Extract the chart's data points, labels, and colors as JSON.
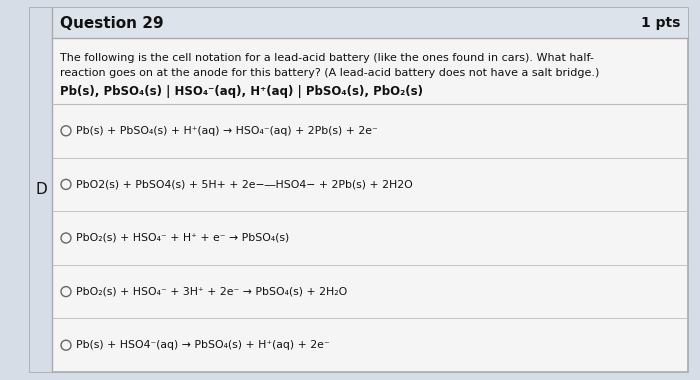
{
  "title": "Question 29",
  "pts": "1 pts",
  "question_label": "D",
  "body_line1": "The following is the cell notation for a lead-acid battery (like the ones found in cars). What half-",
  "body_line2": "reaction goes on at the anode for this battery? (A lead-acid battery does not have a salt bridge.)",
  "cell_notation": "Pb(s), PbSO₄(s) | HSO₄⁻(aq), H⁺(aq) | PbSO₄(s), PbO₂(s)",
  "options": [
    "Pb(s) + PbSO₄(s) + H⁺(aq) → HSO₄⁻(aq) + 2Pb(s) + 2e⁻",
    "PbO2(s) + PbSO4(s) + 5H+ + 2e−―HSO4− + 2Pb(s) + 2H2O",
    "PbO₂(s) + HSO₄⁻ + H⁺ + e⁻ → PbSO₄(s)",
    "PbO₂(s) + HSO₄⁻ + 3H⁺ + 2e⁻ → PbSO₄(s) + 2H₂O",
    "Pb(s) + HSO4⁻(aq) → PbSO₄(s) + H⁺(aq) + 2e⁻"
  ],
  "bg_color": "#d6dde6",
  "box_color": "#f5f5f5",
  "header_bg": "#dde3ea",
  "border_color": "#aaaaaa",
  "text_color": "#111111",
  "line_sep_color": "#bbbbbb"
}
